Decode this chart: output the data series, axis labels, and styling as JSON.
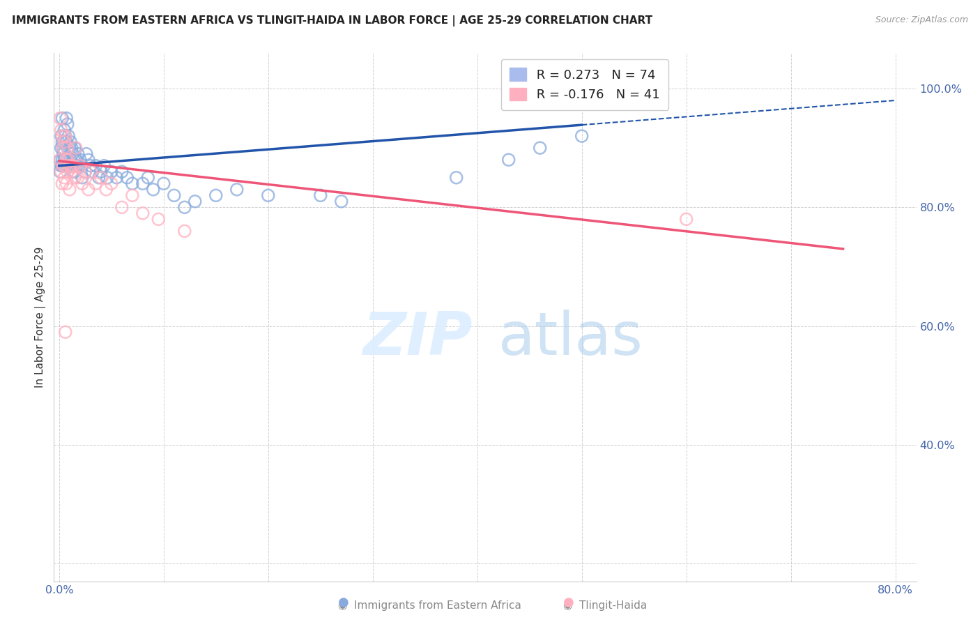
{
  "title": "IMMIGRANTS FROM EASTERN AFRICA VS TLINGIT-HAIDA IN LABOR FORCE | AGE 25-29 CORRELATION CHART",
  "source": "Source: ZipAtlas.com",
  "ylabel": "In Labor Force | Age 25-29",
  "xlim": [
    -0.005,
    0.82
  ],
  "ylim": [
    0.17,
    1.06
  ],
  "r_blue": 0.273,
  "n_blue": 74,
  "r_pink": -0.176,
  "n_pink": 41,
  "blue_marker_color": "#88AADD",
  "pink_marker_color": "#FFB0C0",
  "blue_line_color": "#2255AA",
  "pink_line_color": "#EE5577",
  "legend_label_blue": "Immigrants from Eastern Africa",
  "legend_label_pink": "Tlingit-Haida",
  "blue_scatter_x": [
    0.001,
    0.001,
    0.002,
    0.002,
    0.002,
    0.003,
    0.003,
    0.003,
    0.003,
    0.004,
    0.004,
    0.004,
    0.005,
    0.005,
    0.005,
    0.006,
    0.006,
    0.007,
    0.007,
    0.007,
    0.008,
    0.008,
    0.008,
    0.009,
    0.009,
    0.01,
    0.01,
    0.011,
    0.011,
    0.012,
    0.012,
    0.013,
    0.013,
    0.014,
    0.015,
    0.015,
    0.016,
    0.017,
    0.018,
    0.019,
    0.02,
    0.021,
    0.022,
    0.025,
    0.026,
    0.028,
    0.03,
    0.032,
    0.035,
    0.038,
    0.04,
    0.043,
    0.046,
    0.05,
    0.055,
    0.06,
    0.065,
    0.07,
    0.08,
    0.085,
    0.09,
    0.1,
    0.11,
    0.12,
    0.13,
    0.15,
    0.17,
    0.2,
    0.25,
    0.27,
    0.38,
    0.43,
    0.46,
    0.5
  ],
  "blue_scatter_y": [
    0.88,
    0.86,
    0.92,
    0.9,
    0.87,
    0.95,
    0.91,
    0.88,
    0.87,
    0.9,
    0.89,
    0.87,
    0.93,
    0.91,
    0.88,
    0.92,
    0.87,
    0.95,
    0.91,
    0.88,
    0.94,
    0.9,
    0.87,
    0.92,
    0.88,
    0.9,
    0.87,
    0.91,
    0.88,
    0.9,
    0.87,
    0.89,
    0.86,
    0.88,
    0.9,
    0.86,
    0.88,
    0.87,
    0.89,
    0.87,
    0.88,
    0.87,
    0.85,
    0.86,
    0.89,
    0.88,
    0.87,
    0.86,
    0.87,
    0.85,
    0.86,
    0.87,
    0.85,
    0.86,
    0.85,
    0.86,
    0.85,
    0.84,
    0.84,
    0.85,
    0.83,
    0.84,
    0.82,
    0.8,
    0.81,
    0.82,
    0.83,
    0.82,
    0.82,
    0.81,
    0.85,
    0.88,
    0.9,
    0.92
  ],
  "pink_scatter_x": [
    0.001,
    0.001,
    0.002,
    0.002,
    0.003,
    0.003,
    0.004,
    0.004,
    0.005,
    0.005,
    0.006,
    0.006,
    0.007,
    0.007,
    0.008,
    0.008,
    0.009,
    0.01,
    0.01,
    0.011,
    0.012,
    0.013,
    0.015,
    0.016,
    0.018,
    0.02,
    0.022,
    0.025,
    0.028,
    0.03,
    0.035,
    0.04,
    0.045,
    0.05,
    0.06,
    0.07,
    0.08,
    0.095,
    0.12,
    0.6,
    0.006
  ],
  "pink_scatter_y": [
    0.95,
    0.88,
    0.93,
    0.86,
    0.92,
    0.84,
    0.9,
    0.87,
    0.91,
    0.85,
    0.87,
    0.92,
    0.88,
    0.84,
    0.9,
    0.86,
    0.88,
    0.87,
    0.83,
    0.87,
    0.86,
    0.87,
    0.85,
    0.9,
    0.85,
    0.87,
    0.84,
    0.86,
    0.83,
    0.86,
    0.84,
    0.85,
    0.83,
    0.84,
    0.8,
    0.82,
    0.79,
    0.78,
    0.76,
    0.78,
    0.59
  ],
  "blue_line_x0": 0.0,
  "blue_line_y0": 0.87,
  "blue_line_x1": 0.8,
  "blue_line_y1": 0.98,
  "blue_dash_from": 0.5,
  "pink_line_x0": 0.0,
  "pink_line_y0": 0.878,
  "pink_line_x1": 0.75,
  "pink_line_y1": 0.73
}
